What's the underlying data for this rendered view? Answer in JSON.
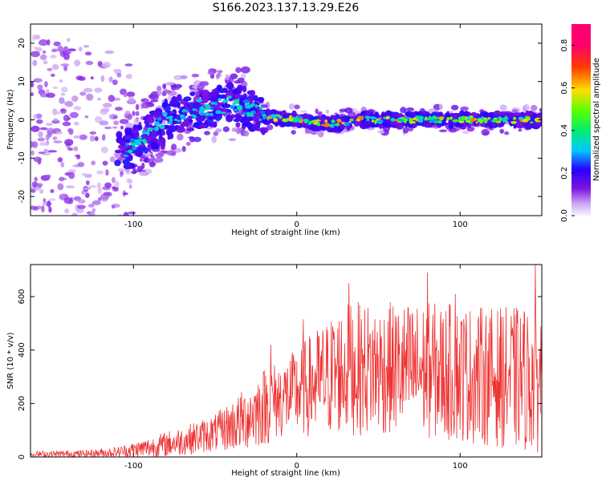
{
  "title": "S166.2023.137.13.29.E26",
  "chart_data": [
    {
      "type": "heatmap",
      "xlabel": "Height of straight line (km)",
      "ylabel": "Frequency (Hz)",
      "xlim": [
        -163,
        150
      ],
      "ylim": [
        -25,
        25
      ],
      "x_ticks": [
        -100,
        0,
        100
      ],
      "y_ticks": [
        -20,
        -10,
        0,
        10,
        20
      ],
      "colorbar": {
        "label": "Normalized spectral amplitude",
        "range": [
          0,
          0.9
        ],
        "ticks": [
          0.0,
          0.2,
          0.4,
          0.6,
          0.8
        ],
        "tick_labels": [
          "0.0",
          "0.2",
          "0.4",
          "0.6",
          "0.8"
        ]
      },
      "ridge": [
        {
          "x": -163,
          "f": -2
        },
        {
          "x": -140,
          "f": -4
        },
        {
          "x": -120,
          "f": -6
        },
        {
          "x": -105,
          "f": -8
        },
        {
          "x": -95,
          "f": -5
        },
        {
          "x": -80,
          "f": 0
        },
        {
          "x": -60,
          "f": 3
        },
        {
          "x": -40,
          "f": 4
        },
        {
          "x": -30,
          "f": 3
        },
        {
          "x": -20,
          "f": 1
        },
        {
          "x": 0,
          "f": 0
        },
        {
          "x": 20,
          "f": -1
        },
        {
          "x": 40,
          "f": 0
        },
        {
          "x": 60,
          "f": 0
        },
        {
          "x": 80,
          "f": 0
        },
        {
          "x": 100,
          "f": 0
        },
        {
          "x": 120,
          "f": 0
        },
        {
          "x": 150,
          "f": 0
        }
      ]
    },
    {
      "type": "line",
      "xlabel": "Height of straight line (km)",
      "ylabel": "SNR (10 * v/v)",
      "xlim": [
        -163,
        150
      ],
      "ylim": [
        0,
        720
      ],
      "x_ticks": [
        -100,
        0,
        100
      ],
      "y_ticks": [
        0,
        200,
        400,
        600
      ],
      "color": "#ee3333",
      "envelope": [
        {
          "x": -163,
          "mean": 10,
          "amp": 12
        },
        {
          "x": -130,
          "mean": 12,
          "amp": 14
        },
        {
          "x": -110,
          "mean": 18,
          "amp": 20
        },
        {
          "x": -90,
          "mean": 35,
          "amp": 40
        },
        {
          "x": -70,
          "mean": 60,
          "amp": 55
        },
        {
          "x": -50,
          "mean": 90,
          "amp": 70
        },
        {
          "x": -35,
          "mean": 130,
          "amp": 110
        },
        {
          "x": -20,
          "mean": 190,
          "amp": 150
        },
        {
          "x": -5,
          "mean": 230,
          "amp": 150
        },
        {
          "x": 10,
          "mean": 270,
          "amp": 200
        },
        {
          "x": 30,
          "mean": 330,
          "amp": 250
        },
        {
          "x": 60,
          "mean": 330,
          "amp": 250
        },
        {
          "x": 90,
          "mean": 320,
          "amp": 260
        },
        {
          "x": 120,
          "mean": 300,
          "amp": 260
        },
        {
          "x": 150,
          "mean": 290,
          "amp": 280
        }
      ],
      "peaks": [
        {
          "x": -16,
          "y": 420
        },
        {
          "x": 4,
          "y": 515
        },
        {
          "x": 22,
          "y": 490
        },
        {
          "x": 32,
          "y": 650
        },
        {
          "x": 80,
          "y": 690
        },
        {
          "x": 97,
          "y": 610
        },
        {
          "x": 146,
          "y": 720
        }
      ]
    }
  ]
}
